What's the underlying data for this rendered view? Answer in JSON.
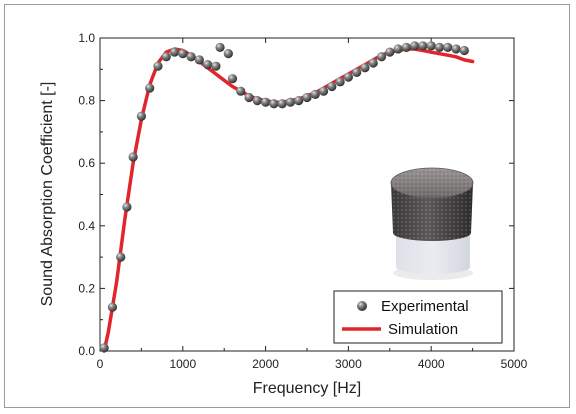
{
  "chart_data": {
    "type": "line+scatter",
    "xlabel": "Frequency [Hz]",
    "ylabel": "Sound Absorption Coefficient [-]",
    "xlim": [
      0,
      5000
    ],
    "ylim": [
      0,
      1.0
    ],
    "xticks": [
      "0",
      "1000",
      "2000",
      "3000",
      "4000",
      "5000"
    ],
    "yticks": [
      "0.0",
      "0.2",
      "0.4",
      "0.6",
      "0.8",
      "1.0"
    ],
    "grid": false,
    "legend_position": "bottom-right",
    "colors": {
      "experimental": "#6e6e6e",
      "simulation": "#e0262b"
    },
    "series": [
      {
        "name": "Experimental",
        "kind": "scatter",
        "x": [
          50,
          150,
          250,
          325,
          400,
          500,
          600,
          700,
          800,
          900,
          1000,
          1100,
          1200,
          1300,
          1400,
          1450,
          1550,
          1600,
          1700,
          1800,
          1900,
          2000,
          2100,
          2200,
          2300,
          2400,
          2500,
          2600,
          2700,
          2800,
          2900,
          3000,
          3100,
          3200,
          3300,
          3400,
          3500,
          3600,
          3700,
          3800,
          3900,
          4000,
          4100,
          4200,
          4300,
          4400
        ],
        "y": [
          0.01,
          0.14,
          0.3,
          0.46,
          0.62,
          0.75,
          0.84,
          0.91,
          0.94,
          0.955,
          0.95,
          0.94,
          0.93,
          0.915,
          0.91,
          0.97,
          0.95,
          0.87,
          0.83,
          0.81,
          0.8,
          0.795,
          0.79,
          0.79,
          0.795,
          0.8,
          0.81,
          0.82,
          0.83,
          0.845,
          0.86,
          0.875,
          0.89,
          0.905,
          0.92,
          0.94,
          0.955,
          0.965,
          0.97,
          0.975,
          0.975,
          0.975,
          0.97,
          0.97,
          0.965,
          0.96
        ]
      },
      {
        "name": "Simulation",
        "kind": "line",
        "x": [
          50,
          100,
          200,
          300,
          400,
          500,
          600,
          700,
          800,
          900,
          1000,
          1100,
          1200,
          1300,
          1400,
          1500,
          1600,
          1700,
          1800,
          1900,
          2000,
          2100,
          2200,
          2300,
          2400,
          2500,
          2600,
          2700,
          2800,
          2900,
          3000,
          3100,
          3200,
          3300,
          3400,
          3500,
          3600,
          3700,
          3800,
          3900,
          4000,
          4100,
          4200,
          4300,
          4400,
          4500
        ],
        "y": [
          0.0,
          0.06,
          0.22,
          0.42,
          0.6,
          0.74,
          0.85,
          0.92,
          0.955,
          0.965,
          0.96,
          0.945,
          0.925,
          0.905,
          0.885,
          0.865,
          0.845,
          0.83,
          0.815,
          0.805,
          0.8,
          0.795,
          0.795,
          0.8,
          0.805,
          0.815,
          0.825,
          0.84,
          0.855,
          0.87,
          0.885,
          0.9,
          0.915,
          0.93,
          0.945,
          0.955,
          0.96,
          0.965,
          0.965,
          0.96,
          0.955,
          0.95,
          0.945,
          0.94,
          0.93,
          0.925
        ]
      }
    ]
  },
  "legend": {
    "experimental_label": "Experimental",
    "simulation_label": "Simulation"
  },
  "inset_photo": {
    "icon": "foam-sample-photo-icon"
  }
}
